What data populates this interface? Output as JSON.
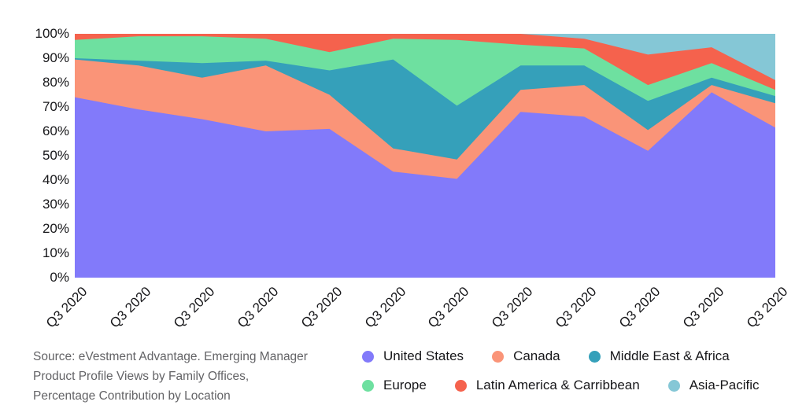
{
  "source_note": {
    "line1": "Source: eVestment Advantage. Emerging Manager",
    "line2": "Product Profile Views by Family Offices,",
    "line3": "Percentage Contribution by Location"
  },
  "chart_data": {
    "type": "area",
    "stacked": true,
    "normalized": "100% stacked",
    "grid": false,
    "legend_position": "bottom-right",
    "ylim": [
      0,
      100
    ],
    "y_ticks": [
      "100%",
      "90%",
      "80%",
      "70%",
      "60%",
      "50%",
      "40%",
      "30%",
      "20%",
      "10%",
      "0%"
    ],
    "x": [
      "Q3 2020",
      "Q3 2020",
      "Q3 2020",
      "Q3 2020",
      "Q3 2020",
      "Q3 2020",
      "Q3 2020",
      "Q3 2020",
      "Q3 2020",
      "Q3 2020",
      "Q3 2020",
      "Q3 2020"
    ],
    "series": [
      {
        "name": "United States",
        "color": "#827AFA",
        "values": [
          74,
          69,
          65,
          60,
          61,
          43.5,
          40.5,
          68,
          66,
          52,
          76,
          61.5
        ]
      },
      {
        "name": "Canada",
        "color": "#FA9478",
        "values": [
          15.5,
          18,
          17,
          27,
          14,
          9.5,
          8,
          9,
          13,
          8.5,
          3,
          10
        ]
      },
      {
        "name": "Middle East & Africa",
        "color": "#35A0BA",
        "values": [
          0.5,
          2,
          6,
          2,
          10,
          36.5,
          22,
          10,
          8,
          12,
          3,
          3
        ]
      },
      {
        "name": "Europe",
        "color": "#6EE0A0",
        "values": [
          7.5,
          10,
          11,
          9,
          7.5,
          8.5,
          27,
          8.5,
          7,
          6.5,
          6,
          2.5
        ]
      },
      {
        "name": "Latin America & Carribbean",
        "color": "#F5624D",
        "values": [
          2.5,
          1,
          1,
          2,
          7.5,
          2,
          2.5,
          4.5,
          4,
          12.5,
          6.5,
          4
        ]
      },
      {
        "name": "Asia-Pacific",
        "color": "#85C7D6",
        "values": [
          0,
          0,
          0,
          0,
          0,
          0,
          0,
          0,
          2,
          8.5,
          5.5,
          19
        ]
      }
    ]
  }
}
